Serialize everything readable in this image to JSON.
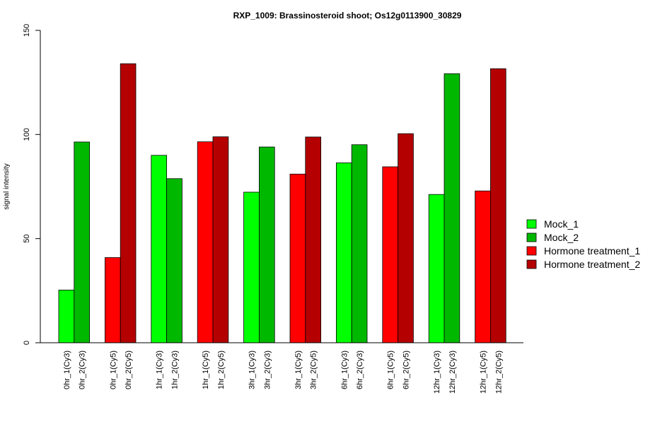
{
  "chart_data": {
    "type": "bar",
    "title": "RXP_1009: Brassinosteroid shoot; Os12g0113900_30829",
    "xlabel": "",
    "ylabel": "signal intensity",
    "ylim": [
      0,
      150
    ],
    "yticks": [
      0,
      50,
      100,
      150
    ],
    "grid": false,
    "legend_position": "right",
    "bars": [
      {
        "label": "0hr_1(Cy3)",
        "value": 25.3,
        "series": "Mock_1"
      },
      {
        "label": "0hr_2(Cy3)",
        "value": 96.4,
        "series": "Mock_2"
      },
      {
        "label": "0hr_1(Cy5)",
        "value": 40.9,
        "series": "Hormone treatment_1"
      },
      {
        "label": "0hr_2(Cy5)",
        "value": 134.0,
        "series": "Hormone treatment_2"
      },
      {
        "label": "1hr_1(Cy3)",
        "value": 90.0,
        "series": "Mock_1"
      },
      {
        "label": "1hr_2(Cy3)",
        "value": 78.8,
        "series": "Mock_2"
      },
      {
        "label": "1hr_1(Cy5)",
        "value": 96.5,
        "series": "Hormone treatment_1"
      },
      {
        "label": "1hr_2(Cy5)",
        "value": 98.9,
        "series": "Hormone treatment_2"
      },
      {
        "label": "3hr_1(Cy3)",
        "value": 72.3,
        "series": "Mock_1"
      },
      {
        "label": "3hr_2(Cy3)",
        "value": 94.0,
        "series": "Mock_2"
      },
      {
        "label": "3hr_1(Cy5)",
        "value": 81.0,
        "series": "Hormone treatment_1"
      },
      {
        "label": "3hr_2(Cy5)",
        "value": 98.8,
        "series": "Hormone treatment_2"
      },
      {
        "label": "6hr_1(Cy3)",
        "value": 86.4,
        "series": "Mock_1"
      },
      {
        "label": "6hr_2(Cy3)",
        "value": 95.1,
        "series": "Mock_2"
      },
      {
        "label": "6hr_1(Cy5)",
        "value": 84.5,
        "series": "Hormone treatment_1"
      },
      {
        "label": "6hr_2(Cy5)",
        "value": 100.4,
        "series": "Hormone treatment_2"
      },
      {
        "label": "12hr_1(Cy3)",
        "value": 71.2,
        "series": "Mock_1"
      },
      {
        "label": "12hr_2(Cy3)",
        "value": 129.2,
        "series": "Mock_2"
      },
      {
        "label": "12hr_1(Cy5)",
        "value": 72.9,
        "series": "Hormone treatment_1"
      },
      {
        "label": "12hr_2(Cy5)",
        "value": 131.6,
        "series": "Hormone treatment_2"
      }
    ],
    "legend": [
      {
        "name": "Mock_1",
        "color": "#00ff00"
      },
      {
        "name": "Mock_2",
        "color": "#00b800"
      },
      {
        "name": "Hormone treatment_1",
        "color": "#ff0000"
      },
      {
        "name": "Hormone treatment_2",
        "color": "#b40000"
      }
    ]
  }
}
